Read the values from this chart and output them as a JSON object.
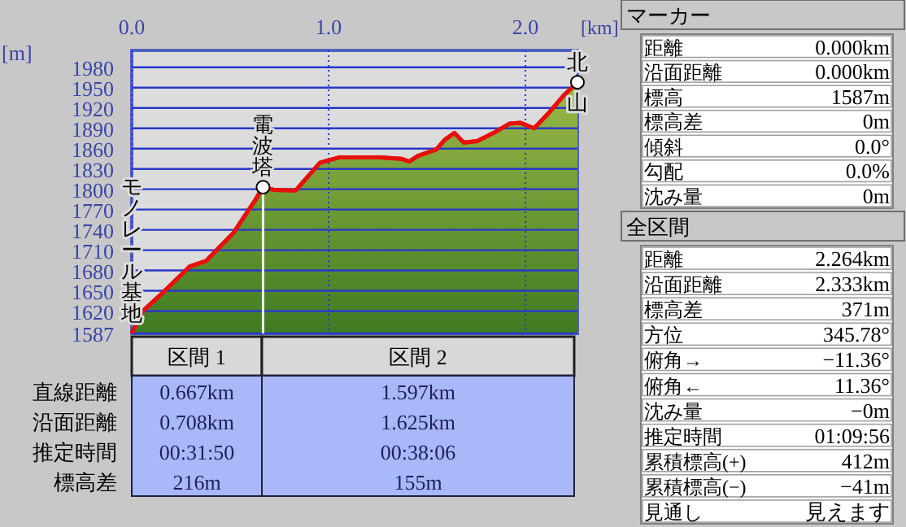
{
  "chart_data": [
    {
      "type": "area",
      "xlabel": "[km]",
      "ylabel": "[m]",
      "grid": true,
      "xlim": [
        0,
        2.264
      ],
      "ylim": [
        1587,
        2005
      ],
      "xticks": [
        {
          "value": 0,
          "label": "0.0"
        },
        {
          "value": 1,
          "label": "1.0"
        },
        {
          "value": 2,
          "label": "2.0"
        }
      ],
      "yticks": [
        1587,
        1620,
        1650,
        1680,
        1710,
        1740,
        1770,
        1800,
        1830,
        1860,
        1890,
        1920,
        1950,
        1980
      ],
      "x": [
        0,
        0.052,
        0.157,
        0.295,
        0.377,
        0.515,
        0.625,
        0.667,
        0.722,
        0.832,
        0.956,
        1.052,
        1.259,
        1.369,
        1.41,
        1.452,
        1.548,
        1.59,
        1.639,
        1.686,
        1.755,
        1.837,
        1.92,
        1.975,
        2.044,
        2.113,
        2.196,
        2.264
      ],
      "series": [
        {
          "color": "#e8100c",
          "values": [
            1587,
            1619,
            1647,
            1686,
            1694,
            1735,
            1783,
            1803,
            1799,
            1798,
            1839,
            1847,
            1847,
            1845,
            1841,
            1849,
            1859,
            1873,
            1883,
            1869,
            1871,
            1883,
            1897,
            1898,
            1890,
            1911,
            1939,
            1958
          ]
        }
      ],
      "ref_lines": [
        {
          "axis": "x",
          "value": 0.667,
          "color": "#ffffff"
        }
      ],
      "annotations": [
        {
          "text": "モノレール基地",
          "x": 0,
          "y": 1587
        },
        {
          "text": "電波塔",
          "x": 0.667,
          "y": 1803
        },
        {
          "text": "北山",
          "x": 2.264,
          "y": 1958
        }
      ]
    },
    {
      "type": "other",
      "categories": [
        "区間 1",
        "区間 2"
      ],
      "y_categories": [
        "直線距離",
        "沿面距離",
        "推定時間",
        "標高差"
      ],
      "annotations": [
        "0.667km",
        "1.597km",
        "0.708km",
        "1.625km",
        "00:31:50",
        "00:38:06",
        "216m",
        "155m"
      ]
    },
    {
      "type": "other",
      "title": "マーカー",
      "y_categories": [
        "距離",
        "沿面距離",
        "標高",
        "標高差",
        "傾斜",
        "勾配",
        "沈み量"
      ],
      "annotations": [
        "0.000km",
        "0.000km",
        "1587m",
        "0m",
        "0.0°",
        "0.0%",
        "0m"
      ]
    },
    {
      "type": "other",
      "title": "全区間",
      "y_categories": [
        "距離",
        "沿面距離",
        "標高差",
        "方位",
        "俯角→",
        "俯角←",
        "沈み量",
        "推定時間",
        "累積標高(+)",
        "累積標高(−)",
        "見通し"
      ],
      "annotations": [
        "2.264km",
        "2.333km",
        "371m",
        "345.78°",
        "−11.36°",
        "11.36°",
        "−0m",
        "01:09:56",
        "412m",
        "−41m",
        "見えます"
      ]
    }
  ]
}
